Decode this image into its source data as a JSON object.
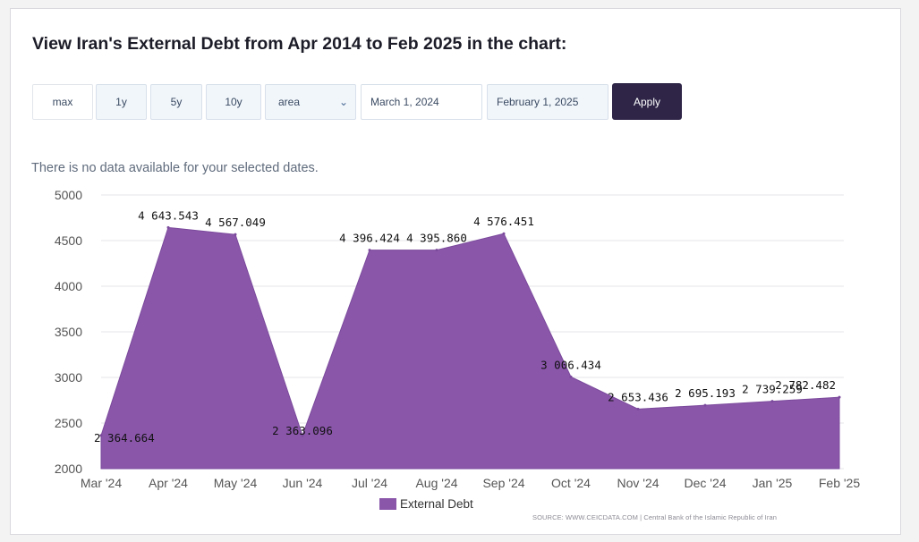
{
  "header": {
    "title": "View Iran's External Debt from Apr 2014 to Feb 2025 in the chart:"
  },
  "controls": {
    "range_buttons": [
      "max",
      "1y",
      "5y",
      "10y"
    ],
    "chart_type_select": "area",
    "start_date": "March 1, 2024",
    "end_date": "February 1, 2025",
    "apply_label": "Apply"
  },
  "notice": "There is no data available for your selected dates.",
  "legend_label": "External Debt",
  "source_text": "SOURCE: WWW.CEICDATA.COM | Central Bank of the Islamic Republic of Iran",
  "colors": {
    "area_fill": "#8a56aa",
    "grid": "#e6e6ea",
    "apply_bg": "#2e2547"
  },
  "icons": {
    "select_chevron": "chevron-down-icon"
  },
  "chart_data": {
    "type": "area",
    "categories": [
      "Mar '24",
      "Apr '24",
      "May '24",
      "Jun '24",
      "Jul '24",
      "Aug '24",
      "Sep '24",
      "Oct '24",
      "Nov '24",
      "Dec '24",
      "Jan '25",
      "Feb '25"
    ],
    "series": [
      {
        "name": "External Debt",
        "values": [
          2364.664,
          4643.543,
          4567.049,
          2363.096,
          4396.424,
          4395.86,
          4576.451,
          3006.434,
          2653.436,
          2695.193,
          2739.259,
          2782.482
        ],
        "labels": [
          "2 364.664",
          "4 643.543",
          "4 567.049",
          "2 363.096",
          "4 396.424",
          "4 395.860",
          "4 576.451",
          "3 006.434",
          "2 653.436",
          "2 695.193",
          "2 739.259",
          "2 782.482"
        ]
      }
    ],
    "ylim": [
      2000,
      5000
    ],
    "yticks": [
      "5000",
      "4500",
      "4000",
      "3500",
      "3000",
      "2500",
      "2000"
    ],
    "ytick_values": [
      5000,
      4500,
      4000,
      3500,
      3000,
      2500,
      2000
    ],
    "grid": true,
    "legend_position": "bottom-center"
  }
}
